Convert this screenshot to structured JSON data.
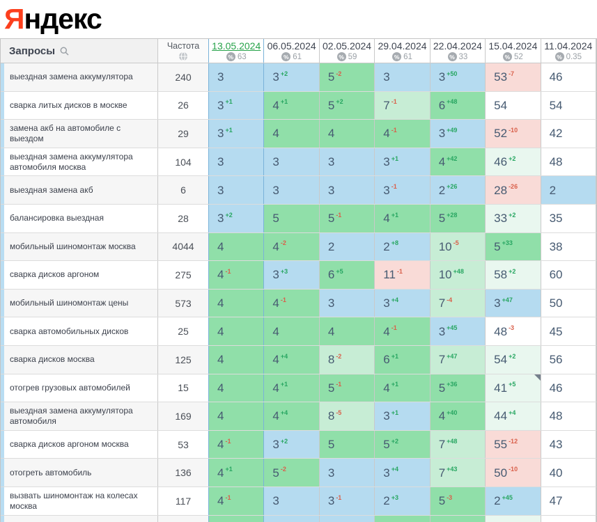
{
  "logo": {
    "first_letter": "Я",
    "rest": "ндекс"
  },
  "header": {
    "queries_label": "Запросы",
    "frequency_label": "Частота",
    "dates": [
      {
        "date": "13.05.2024",
        "visibility": "63",
        "selected": true
      },
      {
        "date": "06.05.2024",
        "visibility": "61",
        "selected": false
      },
      {
        "date": "02.05.2024",
        "visibility": "59",
        "selected": false
      },
      {
        "date": "29.04.2024",
        "visibility": "61",
        "selected": false
      },
      {
        "date": "22.04.2024",
        "visibility": "33",
        "selected": false
      },
      {
        "date": "15.04.2024",
        "visibility": "52",
        "selected": false
      },
      {
        "date": "11.04.2024",
        "visibility": "0.35",
        "selected": false
      }
    ]
  },
  "colors": {
    "yandex_red": "#fc3f1d",
    "top3_blue": "#b5dbf0",
    "top4_6_green": "#90dfa9",
    "top7_10_light_green": "#c7edd5",
    "improved_mint": "#e9f7ef",
    "declined_pink": "#f9dbd7",
    "delta_up_green": "#27a661",
    "delta_down_red": "#d9604b",
    "selected_date_green": "#27a34a"
  },
  "rows": [
    {
      "keyword": "выездная замена аккумулятора",
      "frequency": "240",
      "cells": [
        {
          "v": "3",
          "bg": "blue"
        },
        {
          "v": "3",
          "d": "+2",
          "bg": "blue"
        },
        {
          "v": "5",
          "d": "-2",
          "bg": "green"
        },
        {
          "v": "3",
          "bg": "blue"
        },
        {
          "v": "3",
          "d": "+50",
          "bg": "blue"
        },
        {
          "v": "53",
          "d": "-7",
          "bg": "pink"
        },
        {
          "v": "46",
          "bg": "white"
        }
      ]
    },
    {
      "keyword": "сварка литых дисков в москве",
      "frequency": "26",
      "cells": [
        {
          "v": "3",
          "d": "+1",
          "bg": "blue"
        },
        {
          "v": "4",
          "d": "+1",
          "bg": "green"
        },
        {
          "v": "5",
          "d": "+2",
          "bg": "green"
        },
        {
          "v": "7",
          "d": "-1",
          "bg": "lgreen"
        },
        {
          "v": "6",
          "d": "+48",
          "bg": "green"
        },
        {
          "v": "54",
          "bg": "white"
        },
        {
          "v": "54",
          "bg": "white"
        }
      ]
    },
    {
      "keyword": "замена акб на автомобиле с выездом",
      "frequency": "29",
      "cells": [
        {
          "v": "3",
          "d": "+1",
          "bg": "blue"
        },
        {
          "v": "4",
          "bg": "green"
        },
        {
          "v": "4",
          "bg": "green"
        },
        {
          "v": "4",
          "d": "-1",
          "bg": "green"
        },
        {
          "v": "3",
          "d": "+49",
          "bg": "blue"
        },
        {
          "v": "52",
          "d": "-10",
          "bg": "pink"
        },
        {
          "v": "42",
          "bg": "white"
        }
      ]
    },
    {
      "keyword": "выездная замена аккумулятора автомобиля москва",
      "frequency": "104",
      "cells": [
        {
          "v": "3",
          "bg": "blue"
        },
        {
          "v": "3",
          "bg": "blue"
        },
        {
          "v": "3",
          "bg": "blue"
        },
        {
          "v": "3",
          "d": "+1",
          "bg": "blue"
        },
        {
          "v": "4",
          "d": "+42",
          "bg": "green"
        },
        {
          "v": "46",
          "d": "+2",
          "bg": "mint"
        },
        {
          "v": "48",
          "bg": "white"
        }
      ]
    },
    {
      "keyword": "выездная замена акб",
      "frequency": "6",
      "cells": [
        {
          "v": "3",
          "bg": "blue"
        },
        {
          "v": "3",
          "bg": "blue"
        },
        {
          "v": "3",
          "bg": "blue"
        },
        {
          "v": "3",
          "d": "-1",
          "bg": "blue"
        },
        {
          "v": "2",
          "d": "+26",
          "bg": "blue"
        },
        {
          "v": "28",
          "d": "-26",
          "bg": "pink"
        },
        {
          "v": "2",
          "bg": "blue"
        }
      ]
    },
    {
      "keyword": "балансировка выездная",
      "frequency": "28",
      "cells": [
        {
          "v": "3",
          "d": "+2",
          "bg": "blue"
        },
        {
          "v": "5",
          "bg": "green"
        },
        {
          "v": "5",
          "d": "-1",
          "bg": "green"
        },
        {
          "v": "4",
          "d": "+1",
          "bg": "green"
        },
        {
          "v": "5",
          "d": "+28",
          "bg": "green"
        },
        {
          "v": "33",
          "d": "+2",
          "bg": "mint"
        },
        {
          "v": "35",
          "bg": "white"
        }
      ]
    },
    {
      "keyword": "мобильный шиномонтаж москва",
      "frequency": "4044",
      "cells": [
        {
          "v": "4",
          "bg": "green"
        },
        {
          "v": "4",
          "d": "-2",
          "bg": "green"
        },
        {
          "v": "2",
          "bg": "blue"
        },
        {
          "v": "2",
          "d": "+8",
          "bg": "blue"
        },
        {
          "v": "10",
          "d": "-5",
          "bg": "lgreen"
        },
        {
          "v": "5",
          "d": "+33",
          "bg": "green"
        },
        {
          "v": "38",
          "bg": "white"
        }
      ]
    },
    {
      "keyword": "сварка дисков аргоном",
      "frequency": "275",
      "cells": [
        {
          "v": "4",
          "d": "-1",
          "bg": "green"
        },
        {
          "v": "3",
          "d": "+3",
          "bg": "blue"
        },
        {
          "v": "6",
          "d": "+5",
          "bg": "green"
        },
        {
          "v": "11",
          "d": "-1",
          "bg": "pink"
        },
        {
          "v": "10",
          "d": "+48",
          "bg": "lgreen"
        },
        {
          "v": "58",
          "d": "+2",
          "bg": "mint"
        },
        {
          "v": "60",
          "bg": "white"
        }
      ]
    },
    {
      "keyword": "мобильный шиномонтаж цены",
      "frequency": "573",
      "cells": [
        {
          "v": "4",
          "bg": "green"
        },
        {
          "v": "4",
          "d": "-1",
          "bg": "green"
        },
        {
          "v": "3",
          "bg": "blue"
        },
        {
          "v": "3",
          "d": "+4",
          "bg": "blue"
        },
        {
          "v": "7",
          "d": "-4",
          "bg": "lgreen"
        },
        {
          "v": "3",
          "d": "+47",
          "bg": "blue"
        },
        {
          "v": "50",
          "bg": "white"
        }
      ]
    },
    {
      "keyword": "сварка автомобильных дисков",
      "frequency": "25",
      "cells": [
        {
          "v": "4",
          "bg": "green"
        },
        {
          "v": "4",
          "bg": "green"
        },
        {
          "v": "4",
          "bg": "green"
        },
        {
          "v": "4",
          "d": "-1",
          "bg": "green"
        },
        {
          "v": "3",
          "d": "+45",
          "bg": "blue"
        },
        {
          "v": "48",
          "d": "-3",
          "bg": "white"
        },
        {
          "v": "45",
          "bg": "white"
        }
      ]
    },
    {
      "keyword": "сварка дисков москва",
      "frequency": "125",
      "cells": [
        {
          "v": "4",
          "bg": "green"
        },
        {
          "v": "4",
          "d": "+4",
          "bg": "green"
        },
        {
          "v": "8",
          "d": "-2",
          "bg": "lgreen"
        },
        {
          "v": "6",
          "d": "+1",
          "bg": "green"
        },
        {
          "v": "7",
          "d": "+47",
          "bg": "lgreen"
        },
        {
          "v": "54",
          "d": "+2",
          "bg": "mint"
        },
        {
          "v": "56",
          "bg": "white"
        }
      ]
    },
    {
      "keyword": "отогрев грузовых автомобилей",
      "frequency": "15",
      "cells": [
        {
          "v": "4",
          "bg": "green"
        },
        {
          "v": "4",
          "d": "+1",
          "bg": "green"
        },
        {
          "v": "5",
          "d": "-1",
          "bg": "green"
        },
        {
          "v": "4",
          "d": "+1",
          "bg": "green"
        },
        {
          "v": "5",
          "d": "+36",
          "bg": "green"
        },
        {
          "v": "41",
          "d": "+5",
          "bg": "mint",
          "note": true
        },
        {
          "v": "46",
          "bg": "white"
        }
      ]
    },
    {
      "keyword": "выездная замена аккумулятора автомобиля",
      "frequency": "169",
      "cells": [
        {
          "v": "4",
          "bg": "green"
        },
        {
          "v": "4",
          "d": "+4",
          "bg": "green"
        },
        {
          "v": "8",
          "d": "-5",
          "bg": "lgreen"
        },
        {
          "v": "3",
          "d": "+1",
          "bg": "blue"
        },
        {
          "v": "4",
          "d": "+40",
          "bg": "green"
        },
        {
          "v": "44",
          "d": "+4",
          "bg": "mint"
        },
        {
          "v": "48",
          "bg": "white"
        }
      ]
    },
    {
      "keyword": "сварка дисков аргоном москва",
      "frequency": "53",
      "cells": [
        {
          "v": "4",
          "d": "-1",
          "bg": "green"
        },
        {
          "v": "3",
          "d": "+2",
          "bg": "blue"
        },
        {
          "v": "5",
          "bg": "green"
        },
        {
          "v": "5",
          "d": "+2",
          "bg": "green"
        },
        {
          "v": "7",
          "d": "+48",
          "bg": "lgreen"
        },
        {
          "v": "55",
          "d": "-12",
          "bg": "pink"
        },
        {
          "v": "43",
          "bg": "white"
        }
      ]
    },
    {
      "keyword": "отогреть автомобиль",
      "frequency": "136",
      "cells": [
        {
          "v": "4",
          "d": "+1",
          "bg": "green"
        },
        {
          "v": "5",
          "d": "-2",
          "bg": "green"
        },
        {
          "v": "3",
          "bg": "blue"
        },
        {
          "v": "3",
          "d": "+4",
          "bg": "blue"
        },
        {
          "v": "7",
          "d": "+43",
          "bg": "lgreen"
        },
        {
          "v": "50",
          "d": "-10",
          "bg": "pink"
        },
        {
          "v": "40",
          "bg": "white"
        }
      ]
    },
    {
      "keyword": "вызвать шиномонтаж на колесах москва",
      "frequency": "117",
      "cells": [
        {
          "v": "4",
          "d": "-1",
          "bg": "green"
        },
        {
          "v": "3",
          "bg": "blue"
        },
        {
          "v": "3",
          "d": "-1",
          "bg": "blue"
        },
        {
          "v": "2",
          "d": "+3",
          "bg": "blue"
        },
        {
          "v": "5",
          "d": "-3",
          "bg": "green"
        },
        {
          "v": "2",
          "d": "+45",
          "bg": "blue"
        },
        {
          "v": "47",
          "bg": "white"
        }
      ]
    }
  ],
  "partial_row_bgs": [
    "green",
    "blue",
    "blue",
    "green",
    "green",
    "mint",
    "white"
  ]
}
